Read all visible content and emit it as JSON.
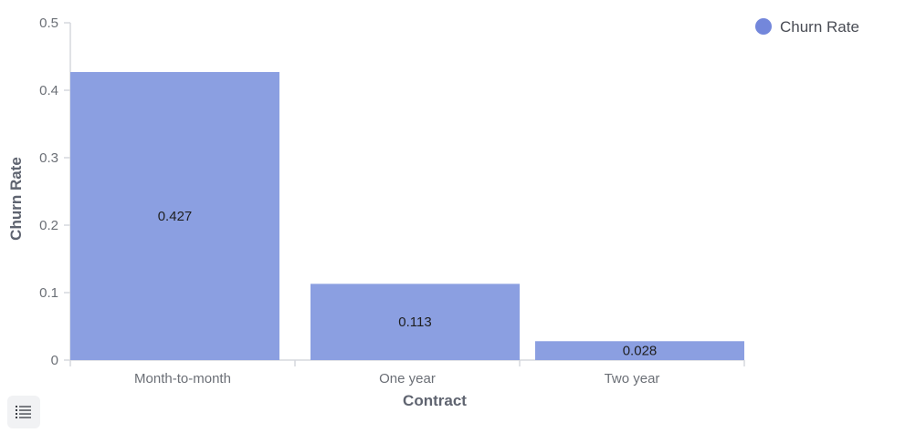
{
  "chart_data": {
    "type": "bar",
    "categories": [
      "Month-to-month",
      "One year",
      "Two year"
    ],
    "series": [
      {
        "name": "Churn Rate",
        "values": [
          0.427,
          0.113,
          0.028
        ],
        "labels": [
          "0.427",
          "0.113",
          "0.028"
        ],
        "color": "#8b9fe1"
      }
    ],
    "xlabel": "Contract",
    "ylabel": "Churn Rate",
    "ylim": [
      0,
      0.5
    ],
    "yticks": [
      0,
      0.1,
      0.2,
      0.3,
      0.4,
      0.5
    ],
    "ytick_labels": [
      "0",
      "0.1",
      "0.2",
      "0.3",
      "0.4",
      "0.5"
    ],
    "grid": false,
    "legend_position": "top-right",
    "legend_marker_color": "#7387db"
  },
  "toolbar": {
    "menu_icon": "list-icon"
  }
}
